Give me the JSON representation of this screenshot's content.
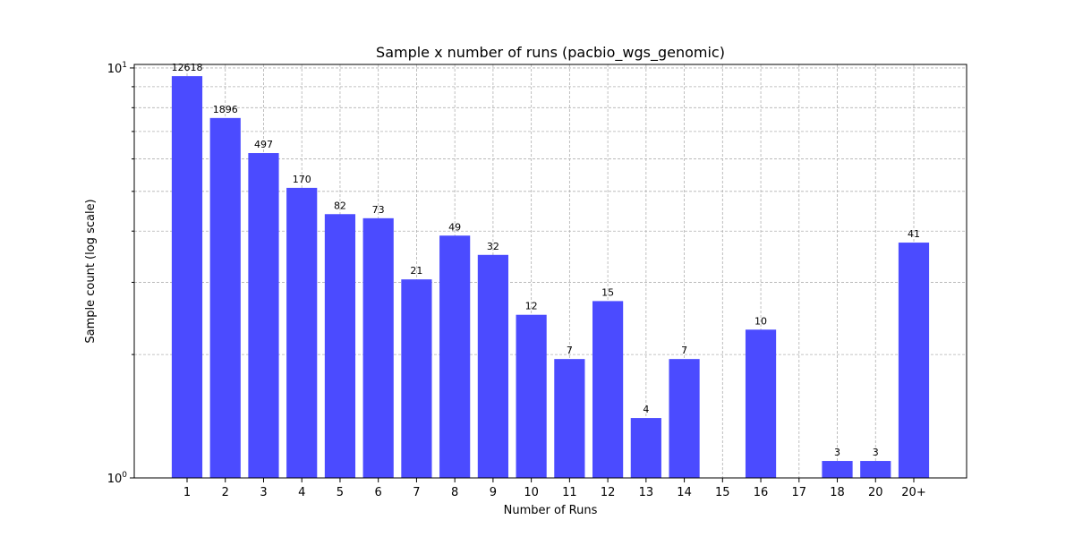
{
  "chart_data": {
    "type": "bar",
    "title": "Sample x number of runs (pacbio_wgs_genomic)",
    "xlabel": "Number of Runs",
    "ylabel": "Sample count (log scale)",
    "categories": [
      "1",
      "2",
      "3",
      "4",
      "5",
      "6",
      "7",
      "8",
      "9",
      "10",
      "11",
      "12",
      "13",
      "14",
      "15",
      "16",
      "17",
      "18",
      "20",
      "20+"
    ],
    "values": [
      12618,
      1896,
      497,
      170,
      82,
      73,
      21,
      49,
      32,
      12,
      7,
      15,
      4,
      7,
      null,
      10,
      null,
      3,
      3,
      41
    ],
    "data_labels": [
      "12618",
      "1896",
      "497",
      "170",
      "82",
      "73",
      "21",
      "49",
      "32",
      "12",
      "7",
      "15",
      "4",
      "7",
      "",
      "10",
      "",
      "3",
      "3",
      "41"
    ],
    "bar_heights": [
      9.55,
      7.55,
      6.2,
      5.1,
      4.4,
      4.3,
      3.05,
      3.9,
      3.5,
      2.5,
      1.95,
      2.7,
      1.4,
      1.95,
      null,
      2.3,
      null,
      1.1,
      1.1,
      3.75
    ],
    "y_scale": "log",
    "ylim": [
      1,
      10.2
    ],
    "y_tick_labels": [
      {
        "value": 1,
        "base": "10",
        "exp": "0"
      },
      {
        "value": 10,
        "base": "10",
        "exp": "1"
      }
    ],
    "y_minor_ticks": [
      2,
      3,
      4,
      5,
      6,
      7,
      8,
      9
    ],
    "grid": true,
    "bar_color": "#4b4bff"
  }
}
